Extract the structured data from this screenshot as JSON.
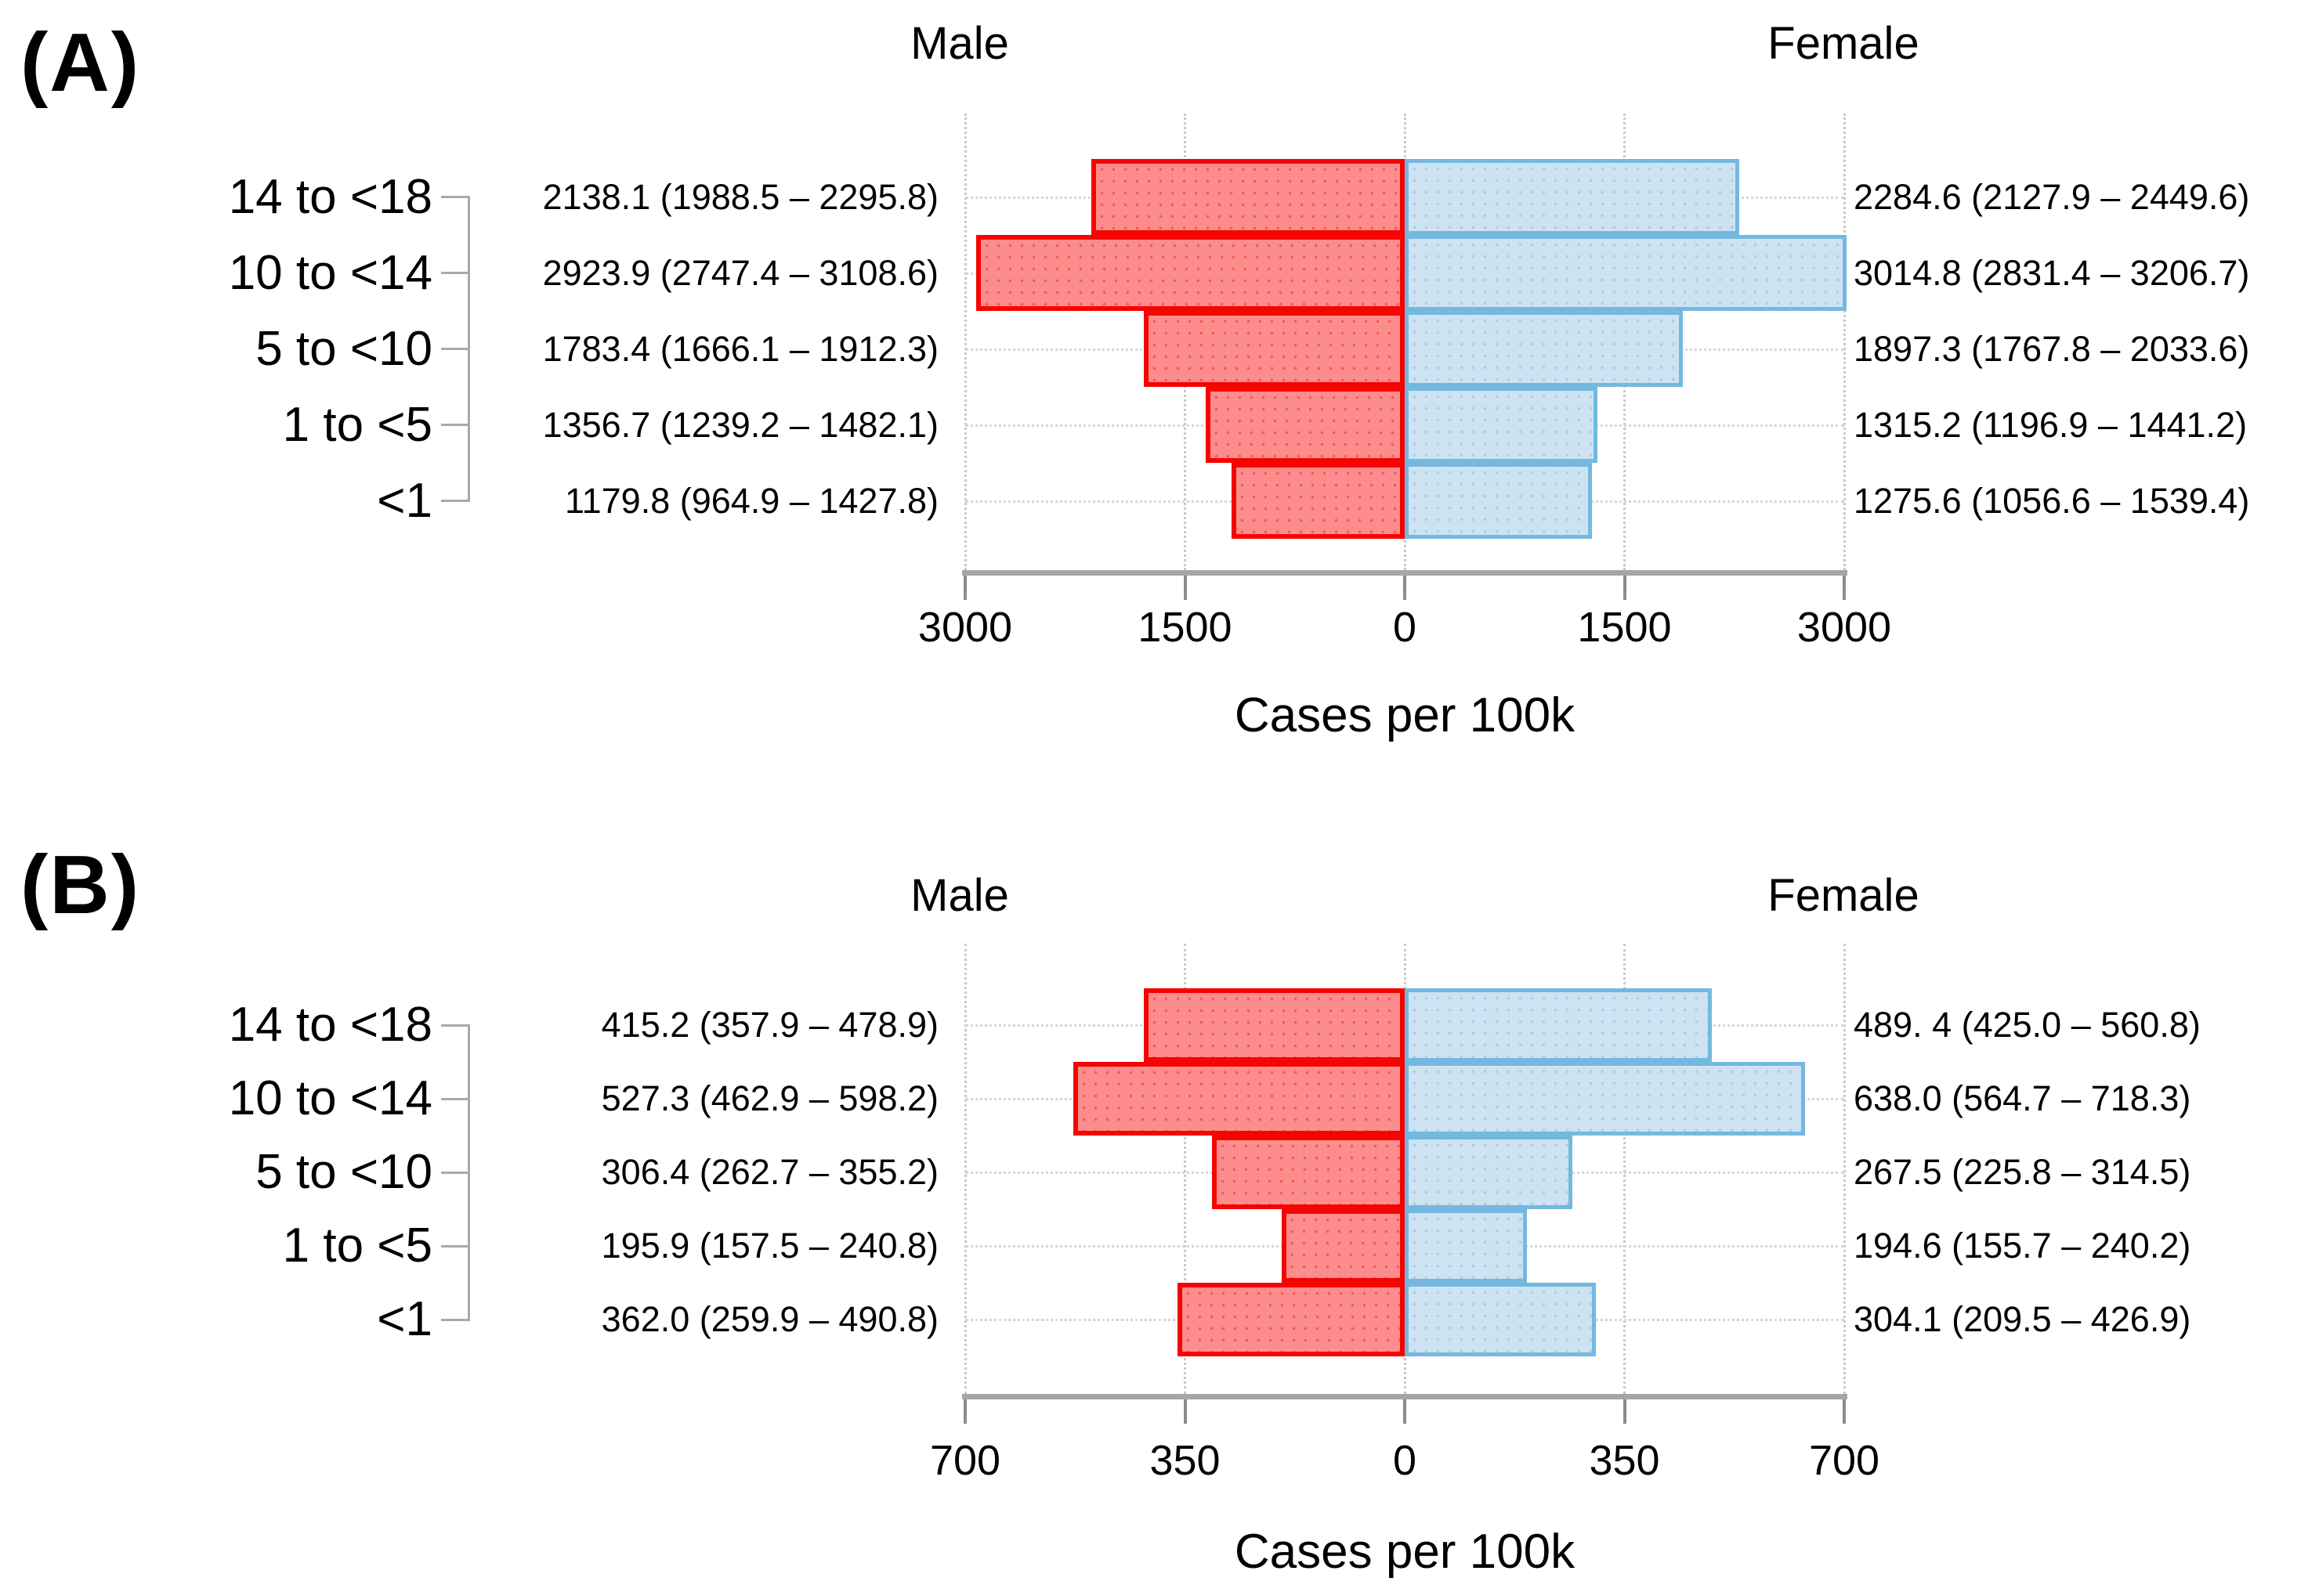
{
  "figure": {
    "panel_a_label": "(A)",
    "panel_b_label": "(B)"
  },
  "colors": {
    "male_border": "#f50400",
    "male_fill": "#fd8d8d",
    "female_border": "#74b8df",
    "female_fill": "#cde3f2",
    "axis_line": "#a6a6a6",
    "gridline": "#c9c9c9"
  },
  "chart_data": [
    {
      "type": "bar",
      "orientation": "horizontal-pyramid",
      "panel": "(A)",
      "categories": [
        "14 to <18",
        "10 to <14",
        "5 to <10",
        "1 to <5",
        "<1"
      ],
      "series": [
        {
          "name": "Male",
          "side": "left",
          "values": [
            2138.1,
            2923.9,
            1783.4,
            1356.7,
            1179.8
          ],
          "ci_low": [
            1988.5,
            2747.4,
            1666.1,
            1239.2,
            964.9
          ],
          "ci_high": [
            2295.8,
            3108.6,
            1912.3,
            1482.1,
            1427.8
          ],
          "labels": [
            "2138.1 (1988.5 – 2295.8)",
            "2923.9 (2747.4 – 3108.6)",
            "1783.4 (1666.1 – 1912.3)",
            "1356.7 (1239.2 – 1482.1)",
            "1179.8 (964.9 – 1427.8)"
          ]
        },
        {
          "name": "Female",
          "side": "right",
          "values": [
            2284.6,
            3014.8,
            1897.3,
            1315.2,
            1275.6
          ],
          "ci_low": [
            2127.9,
            2831.4,
            1767.8,
            1196.9,
            1056.6
          ],
          "ci_high": [
            2449.6,
            3206.7,
            2033.6,
            1441.2,
            1539.4
          ],
          "labels": [
            "2284.6 (2127.9 – 2449.6)",
            "3014.8 (2831.4 – 3206.7)",
            "1897.3 (1767.8 – 2033.6)",
            "1315.2 (1196.9 – 1441.2)",
            "1275.6 (1056.6 – 1539.4)"
          ]
        }
      ],
      "xlabel": "Cases per 100k",
      "axis_max": 3000,
      "xlim": [
        -3000,
        3000
      ],
      "tick_values": [
        3000,
        1500,
        0,
        1500,
        3000
      ],
      "tick_labels": [
        "3000",
        "1500",
        "0",
        "1500",
        "3000"
      ],
      "grid": true,
      "legend_position": "column-titles-top"
    },
    {
      "type": "bar",
      "orientation": "horizontal-pyramid",
      "panel": "(B)",
      "categories": [
        "14 to <18",
        "10 to <14",
        "5 to <10",
        "1 to <5",
        "<1"
      ],
      "series": [
        {
          "name": "Male",
          "side": "left",
          "values": [
            415.2,
            527.3,
            306.4,
            195.9,
            362.0
          ],
          "ci_low": [
            357.9,
            462.9,
            262.7,
            157.5,
            259.9
          ],
          "ci_high": [
            478.9,
            598.2,
            355.2,
            240.8,
            490.8
          ],
          "labels": [
            "415.2 (357.9 – 478.9)",
            "527.3 (462.9 – 598.2)",
            "306.4 (262.7 – 355.2)",
            "195.9 (157.5 – 240.8)",
            "362.0 (259.9 – 490.8)"
          ]
        },
        {
          "name": "Female",
          "side": "right",
          "values": [
            489.4,
            638.0,
            267.5,
            194.6,
            304.1
          ],
          "ci_low": [
            425.0,
            564.7,
            225.8,
            155.7,
            209.5
          ],
          "ci_high": [
            560.8,
            718.3,
            314.5,
            240.2,
            426.9
          ],
          "labels": [
            "489. 4 (425.0 – 560.8)",
            "638.0 (564.7 – 718.3)",
            "267.5 (225.8 – 314.5)",
            "194.6 (155.7 – 240.2)",
            "304.1 (209.5 – 426.9)"
          ]
        }
      ],
      "xlabel": "Cases per 100k",
      "axis_max": 700,
      "xlim": [
        -700,
        700
      ],
      "tick_values": [
        700,
        350,
        0,
        350,
        700
      ],
      "tick_labels": [
        "700",
        "350",
        "0",
        "350",
        "700"
      ],
      "grid": true,
      "legend_position": "column-titles-top"
    }
  ]
}
